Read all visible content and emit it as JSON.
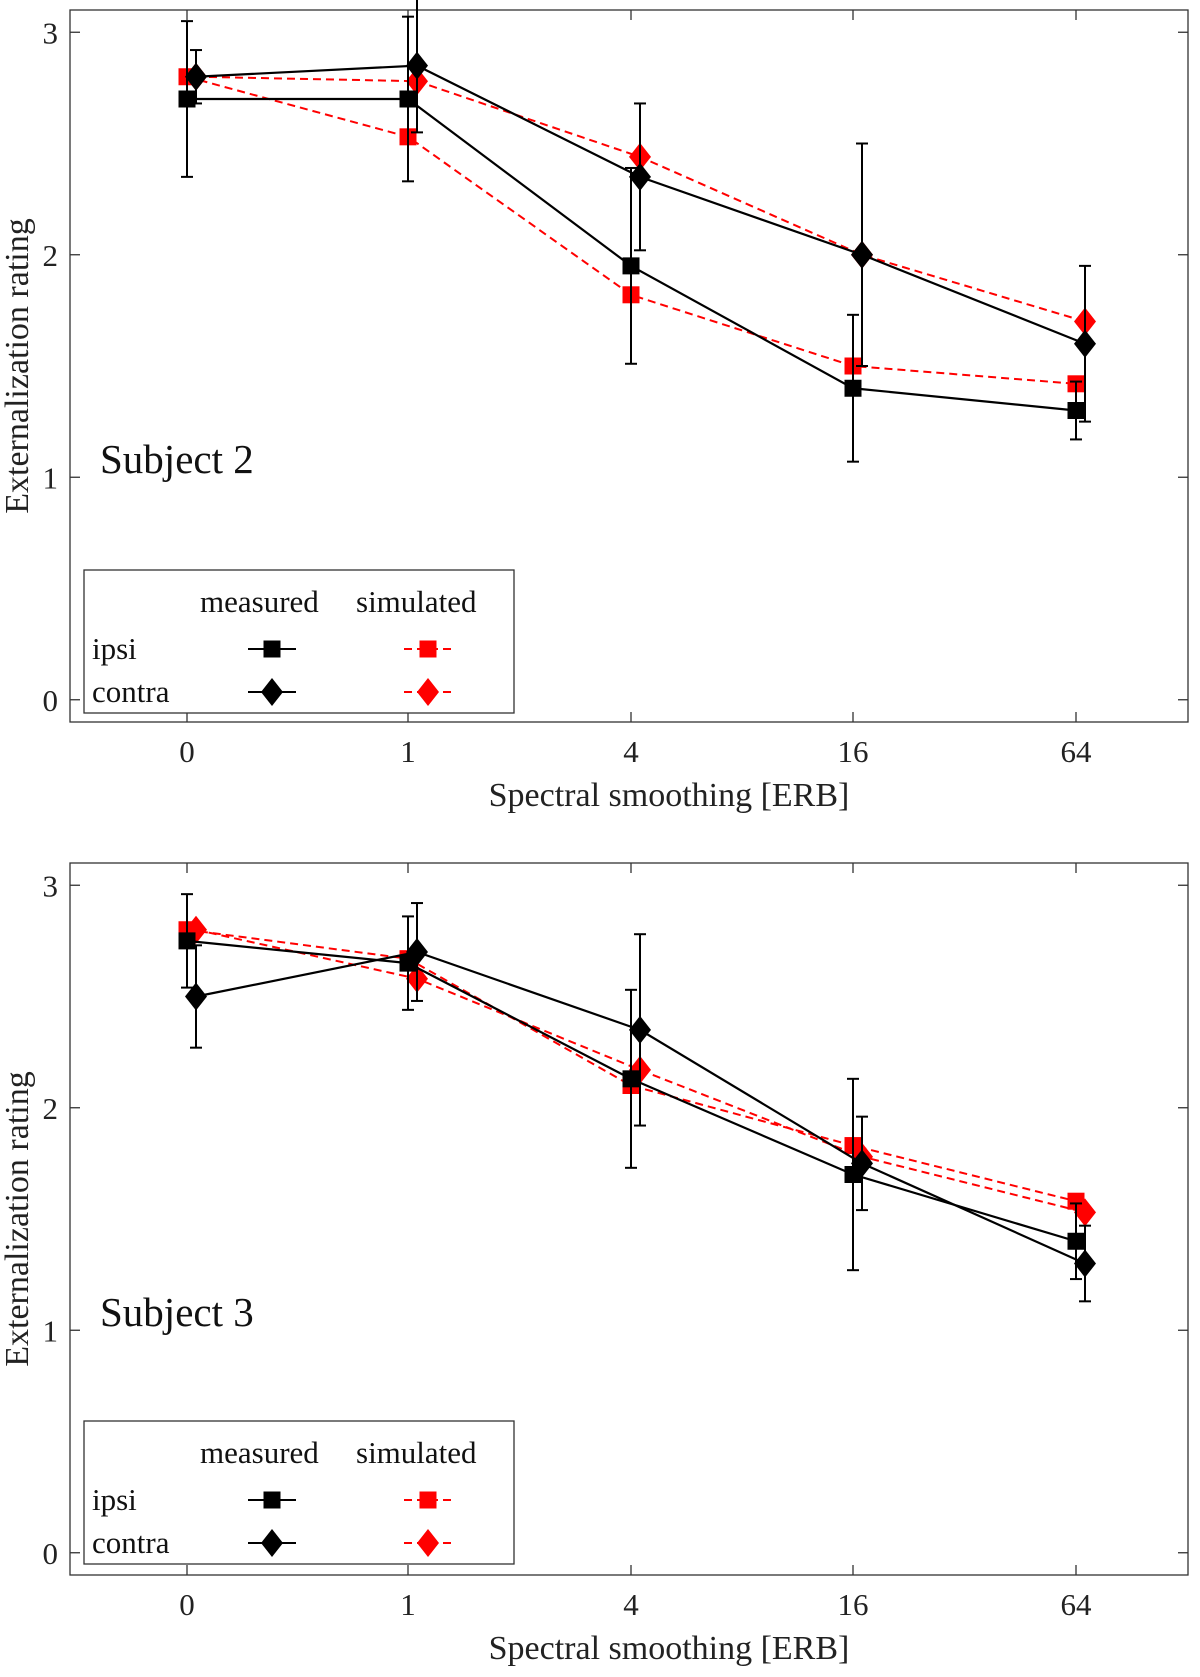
{
  "chart_data": [
    {
      "type": "line",
      "panel_label": "Subject 2",
      "xlabel": "Spectral smoothing [ERB]",
      "ylabel": "Externalization rating",
      "categories": [
        "0",
        "1",
        "4",
        "16",
        "64"
      ],
      "yticks": [
        "0",
        "1",
        "2",
        "3"
      ],
      "ylim": [
        -0.1,
        3.1
      ],
      "grid": false,
      "legend": {
        "placement": "bottom-left",
        "col_headers": [
          "measured",
          "simulated"
        ],
        "row_labels": [
          "ipsi",
          "contra"
        ]
      },
      "series": [
        {
          "name": "ipsi measured",
          "marker": "square",
          "style": "solid",
          "color": "#000000",
          "values": [
            2.7,
            2.7,
            1.95,
            1.4,
            1.3
          ],
          "errors": [
            0.35,
            0.37,
            0.44,
            0.33,
            0.13
          ]
        },
        {
          "name": "contra measured",
          "marker": "diamond",
          "style": "solid",
          "color": "#000000",
          "values": [
            2.8,
            2.85,
            2.35,
            2.0,
            1.6
          ],
          "errors": [
            0.12,
            0.3,
            0.33,
            0.5,
            0.35
          ]
        },
        {
          "name": "ipsi simulated",
          "marker": "square",
          "style": "dashed",
          "color": "#ff0000",
          "values": [
            2.8,
            2.53,
            1.82,
            1.5,
            1.42
          ]
        },
        {
          "name": "contra simulated",
          "marker": "diamond",
          "style": "dashed",
          "color": "#ff0000",
          "values": [
            2.8,
            2.78,
            2.44,
            2.0,
            1.7
          ]
        }
      ]
    },
    {
      "type": "line",
      "panel_label": "Subject 3",
      "xlabel": "Spectral smoothing [ERB]",
      "ylabel": "Externalization rating",
      "categories": [
        "0",
        "1",
        "4",
        "16",
        "64"
      ],
      "yticks": [
        "0",
        "1",
        "2",
        "3"
      ],
      "ylim": [
        -0.1,
        3.1
      ],
      "grid": false,
      "legend": {
        "placement": "bottom-left",
        "col_headers": [
          "measured",
          "simulated"
        ],
        "row_labels": [
          "ipsi",
          "contra"
        ]
      },
      "series": [
        {
          "name": "ipsi measured",
          "marker": "square",
          "style": "solid",
          "color": "#000000",
          "values": [
            2.75,
            2.65,
            2.13,
            1.7,
            1.4
          ],
          "errors": [
            0.21,
            0.21,
            0.4,
            0.43,
            0.17
          ]
        },
        {
          "name": "contra measured",
          "marker": "diamond",
          "style": "solid",
          "color": "#000000",
          "values": [
            2.5,
            2.7,
            2.35,
            1.75,
            1.3
          ],
          "errors": [
            0.23,
            0.22,
            0.43,
            0.21,
            0.17
          ]
        },
        {
          "name": "ipsi simulated",
          "marker": "square",
          "style": "dashed",
          "color": "#ff0000",
          "values": [
            2.8,
            2.67,
            2.1,
            1.83,
            1.58
          ]
        },
        {
          "name": "contra simulated",
          "marker": "diamond",
          "style": "dashed",
          "color": "#ff0000",
          "values": [
            2.8,
            2.58,
            2.17,
            1.78,
            1.53
          ]
        }
      ]
    }
  ]
}
